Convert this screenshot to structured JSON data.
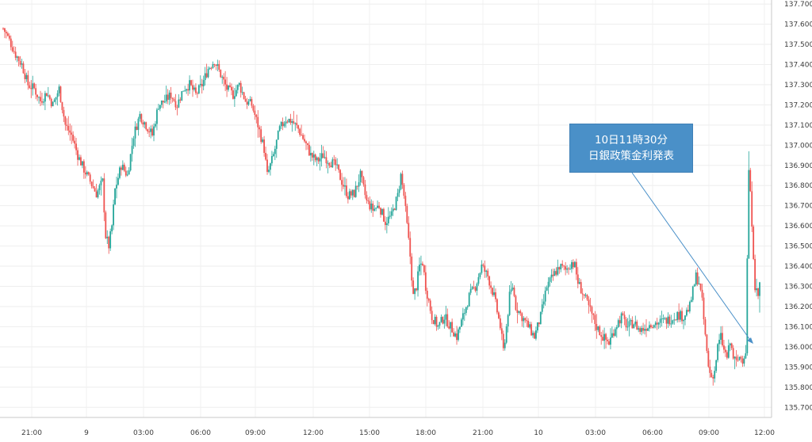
{
  "chart_data": {
    "type": "candlestick",
    "title": "",
    "xlabel": "",
    "ylabel": "",
    "ylim": [
      135.65,
      137.72
    ],
    "y_ticks": [
      "137.700",
      "137.600",
      "137.500",
      "137.400",
      "137.300",
      "137.200",
      "137.100",
      "137.000",
      "136.900",
      "136.800",
      "136.700",
      "136.600",
      "136.500",
      "136.400",
      "136.300",
      "136.200",
      "136.100",
      "136.000",
      "135.900",
      "135.800",
      "135.700"
    ],
    "x_ticks": [
      "21:00",
      "9",
      "03:00",
      "06:00",
      "09:00",
      "12:00",
      "15:00",
      "18:00",
      "21:00",
      "10",
      "03:00",
      "06:00",
      "09:00",
      "12:00"
    ],
    "up_color": "#26a69a",
    "down_color": "#ef5350",
    "grid": true,
    "price_path": [
      [
        0,
        137.58
      ],
      [
        4,
        137.52
      ],
      [
        8,
        137.45
      ],
      [
        12,
        137.4
      ],
      [
        16,
        137.3
      ],
      [
        20,
        137.28
      ],
      [
        24,
        137.22
      ],
      [
        28,
        137.26
      ],
      [
        32,
        137.2
      ],
      [
        36,
        137.28
      ],
      [
        40,
        137.1
      ],
      [
        44,
        137.05
      ],
      [
        48,
        136.95
      ],
      [
        52,
        136.88
      ],
      [
        56,
        136.82
      ],
      [
        60,
        136.76
      ],
      [
        64,
        136.82
      ],
      [
        66,
        136.55
      ],
      [
        68,
        136.5
      ],
      [
        70,
        136.6
      ],
      [
        72,
        136.78
      ],
      [
        76,
        136.9
      ],
      [
        80,
        136.85
      ],
      [
        84,
        137.05
      ],
      [
        88,
        137.15
      ],
      [
        92,
        137.1
      ],
      [
        96,
        137.05
      ],
      [
        100,
        137.2
      ],
      [
        104,
        137.22
      ],
      [
        108,
        137.25
      ],
      [
        112,
        137.2
      ],
      [
        116,
        137.28
      ],
      [
        120,
        137.3
      ],
      [
        124,
        137.25
      ],
      [
        128,
        137.3
      ],
      [
        132,
        137.38
      ],
      [
        136,
        137.42
      ],
      [
        140,
        137.35
      ],
      [
        144,
        137.28
      ],
      [
        148,
        137.25
      ],
      [
        152,
        137.3
      ],
      [
        156,
        137.22
      ],
      [
        160,
        137.2
      ],
      [
        164,
        137.1
      ],
      [
        168,
        136.98
      ],
      [
        170,
        136.85
      ],
      [
        174,
        136.95
      ],
      [
        178,
        137.08
      ],
      [
        182,
        137.13
      ],
      [
        186,
        137.12
      ],
      [
        190,
        137.08
      ],
      [
        194,
        137.02
      ],
      [
        198,
        136.95
      ],
      [
        202,
        136.92
      ],
      [
        206,
        136.95
      ],
      [
        210,
        136.92
      ],
      [
        214,
        136.9
      ],
      [
        218,
        136.82
      ],
      [
        222,
        136.75
      ],
      [
        226,
        136.76
      ],
      [
        230,
        136.85
      ],
      [
        234,
        136.72
      ],
      [
        238,
        136.68
      ],
      [
        242,
        136.7
      ],
      [
        246,
        136.62
      ],
      [
        250,
        136.65
      ],
      [
        254,
        136.75
      ],
      [
        256,
        136.85
      ],
      [
        258,
        136.75
      ],
      [
        260,
        136.6
      ],
      [
        262,
        136.45
      ],
      [
        264,
        136.25
      ],
      [
        266,
        136.3
      ],
      [
        268,
        136.4
      ],
      [
        270,
        136.42
      ],
      [
        272,
        136.3
      ],
      [
        276,
        136.15
      ],
      [
        280,
        136.1
      ],
      [
        284,
        136.15
      ],
      [
        288,
        136.1
      ],
      [
        292,
        136.05
      ],
      [
        296,
        136.15
      ],
      [
        300,
        136.25
      ],
      [
        304,
        136.3
      ],
      [
        308,
        136.4
      ],
      [
        312,
        136.35
      ],
      [
        316,
        136.25
      ],
      [
        320,
        136.1
      ],
      [
        322,
        135.98
      ],
      [
        324,
        136.1
      ],
      [
        326,
        136.25
      ],
      [
        328,
        136.3
      ],
      [
        330,
        136.2
      ],
      [
        334,
        136.15
      ],
      [
        338,
        136.1
      ],
      [
        342,
        136.05
      ],
      [
        346,
        136.15
      ],
      [
        350,
        136.3
      ],
      [
        354,
        136.35
      ],
      [
        358,
        136.4
      ],
      [
        362,
        136.38
      ],
      [
        366,
        136.42
      ],
      [
        368,
        136.4
      ],
      [
        370,
        136.32
      ],
      [
        374,
        136.25
      ],
      [
        378,
        136.18
      ],
      [
        382,
        136.1
      ],
      [
        386,
        136.05
      ],
      [
        390,
        136.02
      ],
      [
        394,
        136.1
      ],
      [
        398,
        136.15
      ],
      [
        402,
        136.1
      ],
      [
        406,
        136.12
      ],
      [
        410,
        136.08
      ],
      [
        414,
        136.1
      ],
      [
        418,
        136.12
      ],
      [
        422,
        136.12
      ],
      [
        426,
        136.13
      ],
      [
        430,
        136.14
      ],
      [
        434,
        136.16
      ],
      [
        438,
        136.15
      ],
      [
        442,
        136.2
      ],
      [
        446,
        136.35
      ],
      [
        448,
        136.32
      ],
      [
        450,
        136.22
      ],
      [
        452,
        136.05
      ],
      [
        454,
        135.9
      ],
      [
        456,
        135.85
      ],
      [
        458,
        135.88
      ],
      [
        460,
        136.0
      ],
      [
        462,
        136.05
      ],
      [
        464,
        135.98
      ],
      [
        466,
        135.95
      ],
      [
        468,
        136.02
      ],
      [
        470,
        135.95
      ],
      [
        472,
        135.92
      ],
      [
        474,
        135.95
      ],
      [
        476,
        135.94
      ],
      [
        478,
        135.98
      ],
      [
        480,
        136.88
      ],
      [
        482,
        136.62
      ],
      [
        484,
        136.3
      ],
      [
        486,
        136.25
      ],
      [
        487,
        136.32
      ]
    ],
    "annotation": {
      "line1": "10日11時30分",
      "line2": "日銀政策金利発表"
    }
  }
}
